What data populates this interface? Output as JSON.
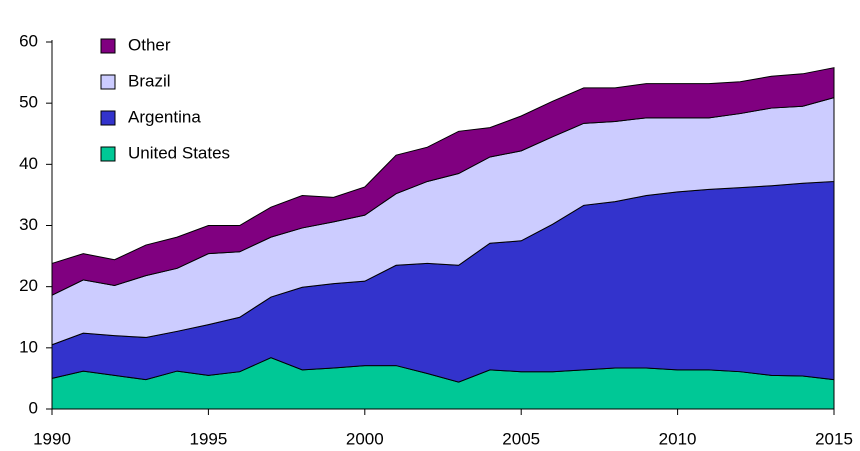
{
  "chart_data": {
    "type": "stacked_area",
    "x": [
      1990,
      1991,
      1992,
      1993,
      1994,
      1995,
      1996,
      1997,
      1998,
      1999,
      2000,
      2001,
      2002,
      2003,
      2004,
      2005,
      2006,
      2007,
      2008,
      2009,
      2010,
      2011,
      2012,
      2013,
      2014,
      2015
    ],
    "series": [
      {
        "name": "United States",
        "color": "#00c896",
        "values": [
          5.0,
          6.2,
          5.5,
          4.8,
          6.2,
          5.5,
          6.1,
          8.4,
          6.4,
          6.7,
          7.1,
          7.1,
          5.8,
          4.4,
          6.4,
          6.1,
          6.1,
          6.4,
          6.7,
          6.7,
          6.4,
          6.4,
          6.1,
          5.5,
          5.4,
          4.8
        ]
      },
      {
        "name": "Argentina",
        "color": "#3333cc",
        "values": [
          5.5,
          6.2,
          6.5,
          6.9,
          6.5,
          8.3,
          8.9,
          9.9,
          13.5,
          13.8,
          13.8,
          16.4,
          18.0,
          19.1,
          20.7,
          21.4,
          24.1,
          26.9,
          27.2,
          28.2,
          29.1,
          29.5,
          30.1,
          31.0,
          31.5,
          32.4
        ]
      },
      {
        "name": "Brazil",
        "color": "#ccccff",
        "values": [
          8.1,
          8.7,
          8.2,
          10.1,
          10.3,
          11.6,
          10.7,
          9.8,
          9.7,
          10.1,
          10.8,
          11.7,
          13.4,
          15.0,
          14.1,
          14.7,
          14.3,
          13.4,
          13.1,
          12.7,
          12.1,
          11.7,
          12.1,
          12.7,
          12.6,
          13.7
        ]
      },
      {
        "name": "Other",
        "color": "#800080",
        "values": [
          5.2,
          4.3,
          4.2,
          5.0,
          5.1,
          4.6,
          4.3,
          4.9,
          5.3,
          4.0,
          4.6,
          6.3,
          5.6,
          6.9,
          4.8,
          5.7,
          5.8,
          5.8,
          5.5,
          5.6,
          5.6,
          5.6,
          5.2,
          5.2,
          5.3,
          4.9
        ]
      }
    ],
    "xlim": [
      1990,
      2015
    ],
    "xticks": [
      1990,
      1995,
      2000,
      2005,
      2010,
      2015
    ],
    "ylim": [
      0,
      60
    ],
    "yticks": [
      0,
      10,
      20,
      30,
      40,
      50,
      60
    ],
    "legend": "upper left"
  }
}
